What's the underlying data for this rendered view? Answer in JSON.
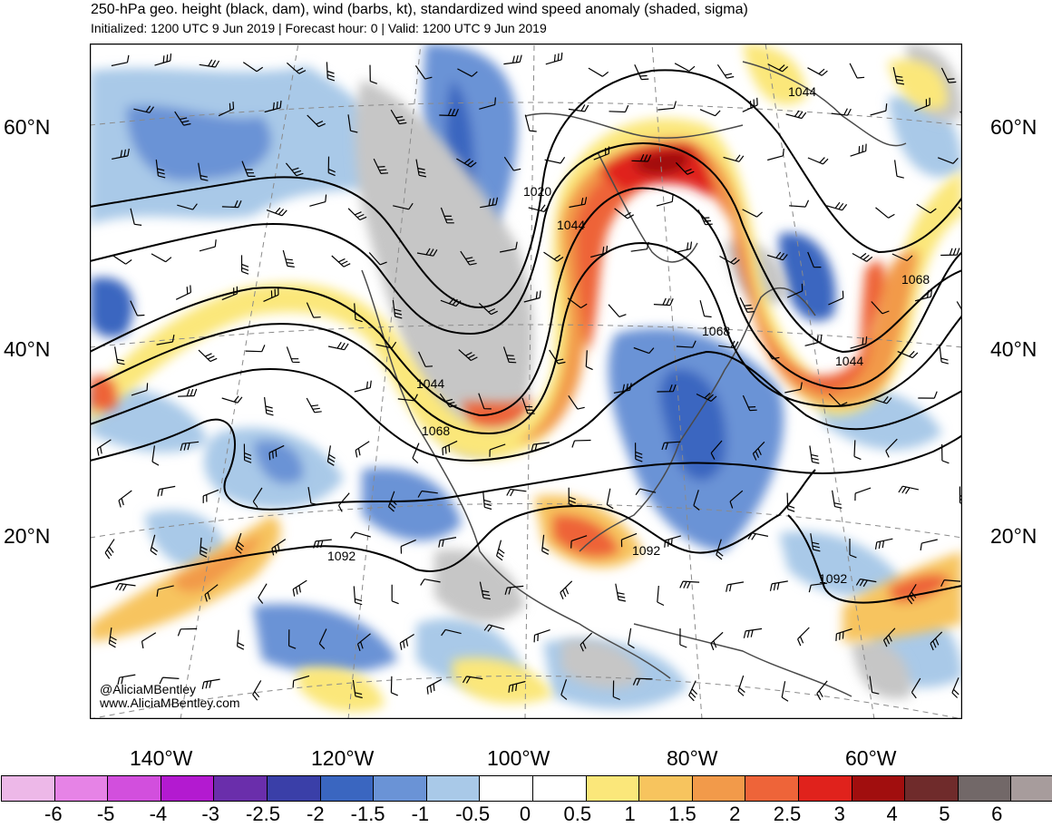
{
  "header": {
    "title": "250-hPa geo. height (black, dam), wind (barbs, kt), standardized wind speed anomaly (shaded, sigma)",
    "subtitle": "Initialized: 1200 UTC 9 Jun 2019 | Forecast hour: 0 | Valid: 1200 UTC 9 Jun 2019"
  },
  "map": {
    "lat_labels": [
      "60°N",
      "40°N",
      "20°N"
    ],
    "lon_labels": [
      "140°W",
      "120°W",
      "100°W",
      "80°W",
      "60°W"
    ],
    "contour_labels": [
      "1020",
      "1044",
      "1044",
      "1068",
      "1044",
      "1068",
      "1044",
      "1068",
      "1092",
      "1092",
      "1092"
    ],
    "credit": [
      "@AliciaMBentley",
      "www.AliciaMBentley.com"
    ]
  },
  "colorbar": {
    "labels": [
      "-6",
      "-5",
      "-4",
      "-3",
      "-2.5",
      "-2",
      "-1.5",
      "-1",
      "-0.5",
      "0",
      "0.5",
      "1",
      "1.5",
      "2",
      "2.5",
      "3",
      "4",
      "5",
      "6"
    ],
    "colors": [
      "#edb8e8",
      "#e683e6",
      "#d24fdd",
      "#b31ad0",
      "#6a2eab",
      "#3a3fa8",
      "#3a66c0",
      "#6a93d6",
      "#a9c9e8",
      "#ffffff",
      "#ffffff",
      "#fbe77a",
      "#f7c45e",
      "#f29a4a",
      "#ee6439",
      "#e0221c",
      "#a10e0e",
      "#6f2b2b",
      "#726868",
      "#a79c9c"
    ]
  }
}
